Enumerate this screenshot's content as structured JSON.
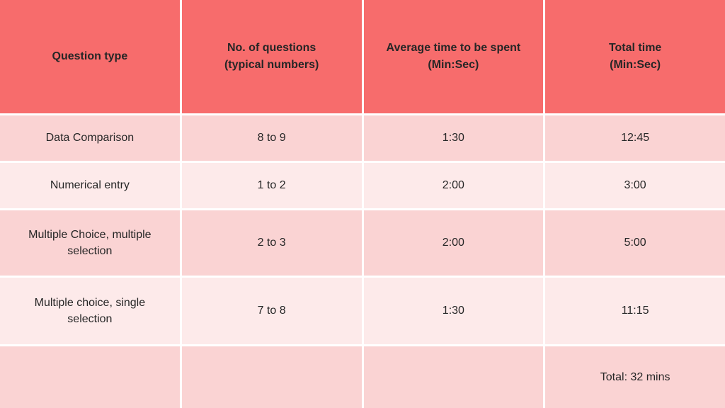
{
  "chart_data": {
    "type": "table",
    "title": "",
    "columns": [
      "Question type",
      "No. of questions\n(typical numbers)",
      "Average time to be spent\n(Min:Sec)",
      "Total time\n(Min:Sec)"
    ],
    "rows": [
      [
        "Data Comparison",
        "8 to 9",
        "1:30",
        "12:45"
      ],
      [
        "Numerical entry",
        "1 to 2",
        "2:00",
        "3:00"
      ],
      [
        "Multiple Choice, multiple selection",
        "2 to 3",
        "2:00",
        "5:00"
      ],
      [
        "Multiple choice, single selection",
        "7 to 8",
        "1:30",
        "11:15"
      ],
      [
        "",
        "",
        "",
        "Total: 32 mins"
      ]
    ],
    "layout": {
      "header_rows": 1,
      "alternating_row_shading": true,
      "grid": true
    }
  },
  "colors": {
    "header_bg": "#f76c6c",
    "row_shaded": "#fad3d3",
    "row_plain": "#fdeaea",
    "gridline": "#ffffff",
    "text": "#262626"
  }
}
